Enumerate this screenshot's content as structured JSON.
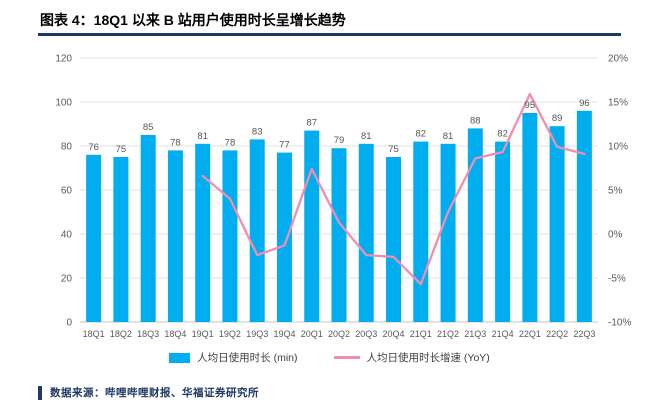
{
  "page": {
    "title": "图表 4：18Q1 以来 B 站用户使用时长呈增长趋势",
    "source_label": "数据来源：哔哩哔哩财报、华福证券研究所"
  },
  "colors": {
    "accent_navy": "#1F3864",
    "bar": "#00AEEF",
    "line": "#F28CB1",
    "grid": "#E2E2E2",
    "axis_line": "#C6C6C6",
    "axis_text": "#595959",
    "value_label": "#555555"
  },
  "chart_data": {
    "type": "bar+line",
    "title": "18Q1 以来 B 站用户使用时长呈增长趋势",
    "categories": [
      "18Q1",
      "18Q2",
      "18Q3",
      "18Q4",
      "19Q1",
      "19Q2",
      "19Q3",
      "19Q4",
      "20Q1",
      "20Q2",
      "20Q3",
      "20Q4",
      "21Q1",
      "21Q2",
      "21Q3",
      "21Q4",
      "22Q1",
      "22Q2",
      "22Q3"
    ],
    "series": [
      {
        "name": "人均日使用时长 (min)",
        "type": "bar",
        "axis": "left",
        "values": [
          76,
          75,
          85,
          78,
          81,
          78,
          83,
          77,
          87,
          79,
          81,
          75,
          82,
          81,
          88,
          82,
          95,
          89,
          96
        ]
      },
      {
        "name": "人均日使用时长增速 (YoY)",
        "type": "line",
        "axis": "right",
        "values": [
          null,
          null,
          null,
          null,
          6.6,
          4.0,
          -2.4,
          -1.3,
          7.4,
          1.3,
          -2.4,
          -2.6,
          -5.7,
          2.5,
          8.6,
          9.3,
          15.9,
          9.9,
          9.1
        ]
      }
    ],
    "left_axis": {
      "min": 0,
      "max": 120,
      "step": 20,
      "ticks": [
        0,
        20,
        40,
        60,
        80,
        100,
        120
      ]
    },
    "right_axis": {
      "min": -10,
      "max": 20,
      "step": 5,
      "ticks": [
        "-10%",
        "-5%",
        "0%",
        "5%",
        "10%",
        "15%",
        "20%"
      ]
    },
    "grid": true,
    "legend_position": "bottom"
  }
}
